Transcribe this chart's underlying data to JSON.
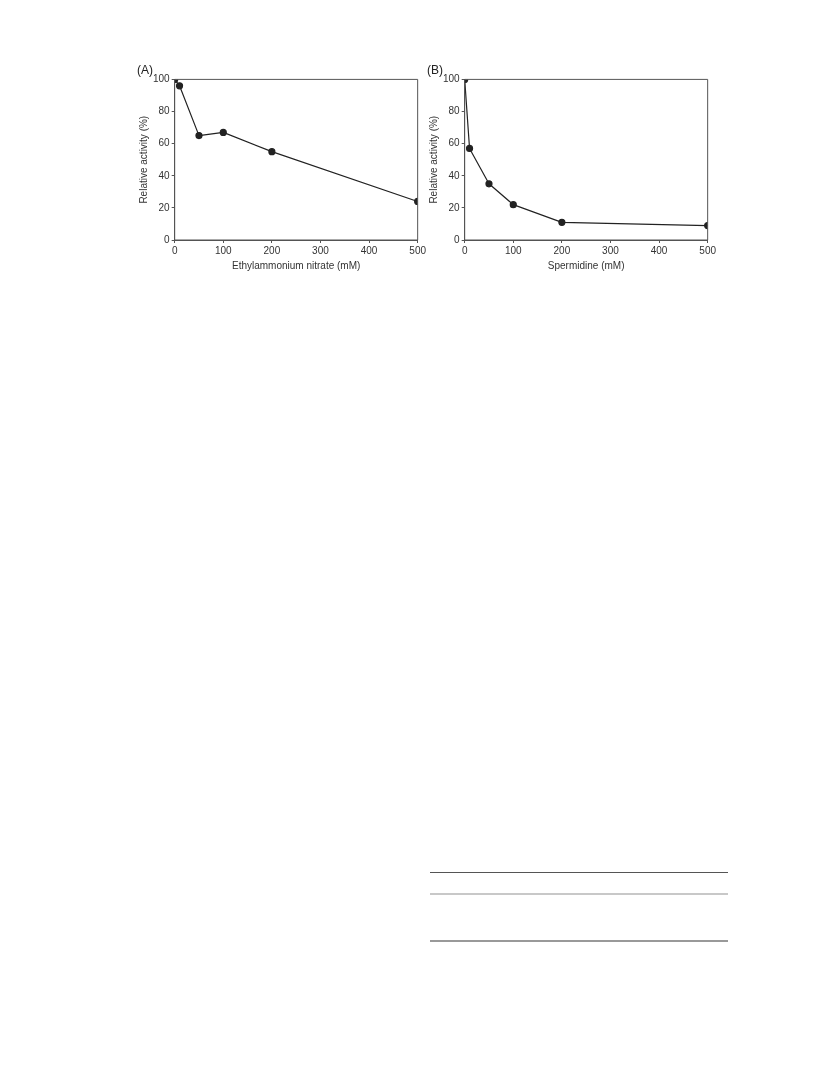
{
  "chart_data": [
    {
      "type": "line",
      "title": "(A)",
      "xlabel": "Ethylammonium nitrate (mM)",
      "ylabel": "Relative activity (%)",
      "x": [
        0,
        10,
        50,
        100,
        200,
        500
      ],
      "series": [
        {
          "color": "#222222",
          "values": [
            100,
            96,
            65,
            67,
            55,
            24
          ]
        }
      ],
      "xlim": [
        0,
        500
      ],
      "xticks": [
        0,
        100,
        200,
        300,
        400,
        500
      ],
      "ylim": [
        0,
        100
      ],
      "yticks": [
        0,
        20,
        40,
        60,
        80,
        100
      ],
      "marker": "circle",
      "line_style": "solid"
    },
    {
      "type": "line",
      "title": "(B)",
      "xlabel": "Spermidine (mM)",
      "ylabel": "Relative activity (%)",
      "x": [
        0,
        10,
        50,
        100,
        200,
        500
      ],
      "series": [
        {
          "color": "#222222",
          "values": [
            100,
            57,
            35,
            22,
            11,
            9
          ]
        }
      ],
      "xlim": [
        0,
        500
      ],
      "xticks": [
        0,
        100,
        200,
        300,
        400,
        500
      ],
      "ylim": [
        0,
        100
      ],
      "yticks": [
        0,
        20,
        40,
        60,
        80,
        100
      ],
      "marker": "circle",
      "line_style": "solid"
    }
  ]
}
